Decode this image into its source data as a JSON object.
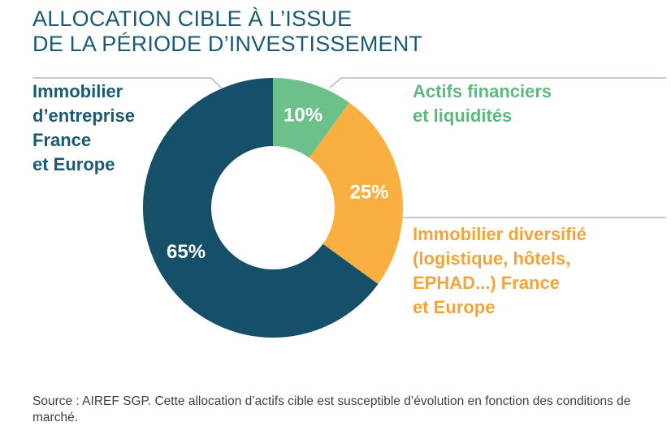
{
  "title": {
    "line1": "ALLOCATION CIBLE À L’ISSUE",
    "line2": "DE LA PÉRIODE D’INVESTISSEMENT"
  },
  "colors": {
    "title": "#1a5a72",
    "dark_blue": "#154f68",
    "green": "#6cc18a",
    "orange": "#f9b040",
    "label_blue": "#1a5a72",
    "label_green": "#5fb87e",
    "label_orange": "#f0a53a",
    "leader_line": "#8a9aa6"
  },
  "chart_data": {
    "type": "pie",
    "variant": "donut",
    "title": "ALLOCATION CIBLE À L’ISSUE DE LA PÉRIODE D’INVESTISSEMENT",
    "slices": [
      {
        "label_lines": [
          "Actifs financiers",
          "et liquidités"
        ],
        "value": 10,
        "value_label": "10%",
        "color": "#6cc18a",
        "label_color": "#5fb87e"
      },
      {
        "label_lines": [
          "Immobilier diversifié",
          "(logistique, hôtels,",
          "EPHAD...) France",
          "et Europe"
        ],
        "value": 25,
        "value_label": "25%",
        "color": "#f9b040",
        "label_color": "#f0a53a"
      },
      {
        "label_lines": [
          "Immobilier",
          "d’entreprise",
          "France",
          "et Europe"
        ],
        "value": 65,
        "value_label": "65%",
        "color": "#154f68",
        "label_color": "#1a5a72"
      }
    ]
  },
  "source": {
    "text": "Source : AIREF SGP. Cette allocation d’actifs cible est susceptible d’évolution en fonction des conditions de marché."
  }
}
